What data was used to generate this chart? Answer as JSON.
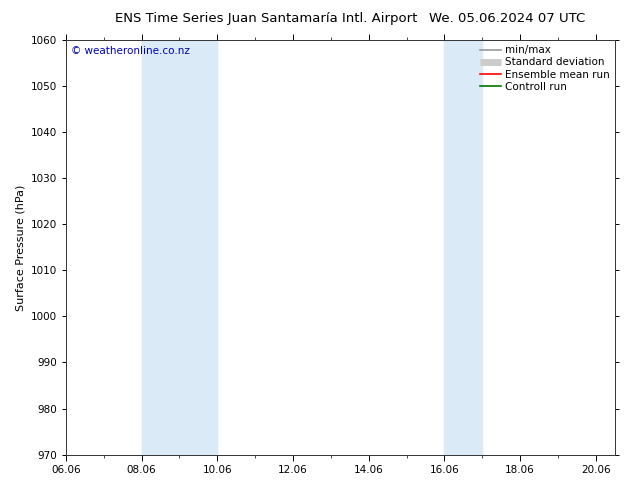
{
  "title_left": "ENS Time Series Juan Santamaría Intl. Airport",
  "title_right": "We. 05.06.2024 07 UTC",
  "ylabel": "Surface Pressure (hPa)",
  "ylim": [
    970,
    1060
  ],
  "yticks": [
    970,
    980,
    990,
    1000,
    1010,
    1020,
    1030,
    1040,
    1050,
    1060
  ],
  "xlim_start": 0.0,
  "xlim_end": 14.5,
  "xtick_labels": [
    "06.06",
    "08.06",
    "10.06",
    "12.06",
    "14.06",
    "16.06",
    "18.06",
    "20.06"
  ],
  "xtick_positions": [
    0,
    2,
    4,
    6,
    8,
    10,
    12,
    14
  ],
  "shaded_bands": [
    {
      "x_start": 2.0,
      "x_end": 4.0
    },
    {
      "x_start": 10.0,
      "x_end": 11.0
    }
  ],
  "band_color": "#daeaf7",
  "band_alpha": 1.0,
  "watermark": "© weatheronline.co.nz",
  "watermark_color": "#0000bb",
  "legend_items": [
    {
      "label": "min/max",
      "color": "#999999",
      "lw": 1.2,
      "style": "-"
    },
    {
      "label": "Standard deviation",
      "color": "#cccccc",
      "lw": 5,
      "style": "-"
    },
    {
      "label": "Ensemble mean run",
      "color": "#ff0000",
      "lw": 1.2,
      "style": "-"
    },
    {
      "label": "Controll run",
      "color": "#007700",
      "lw": 1.2,
      "style": "-"
    }
  ],
  "bg_color": "#ffffff",
  "title_fontsize": 9.5,
  "axis_label_fontsize": 8,
  "tick_fontsize": 7.5,
  "watermark_fontsize": 7.5,
  "legend_fontsize": 7.5
}
